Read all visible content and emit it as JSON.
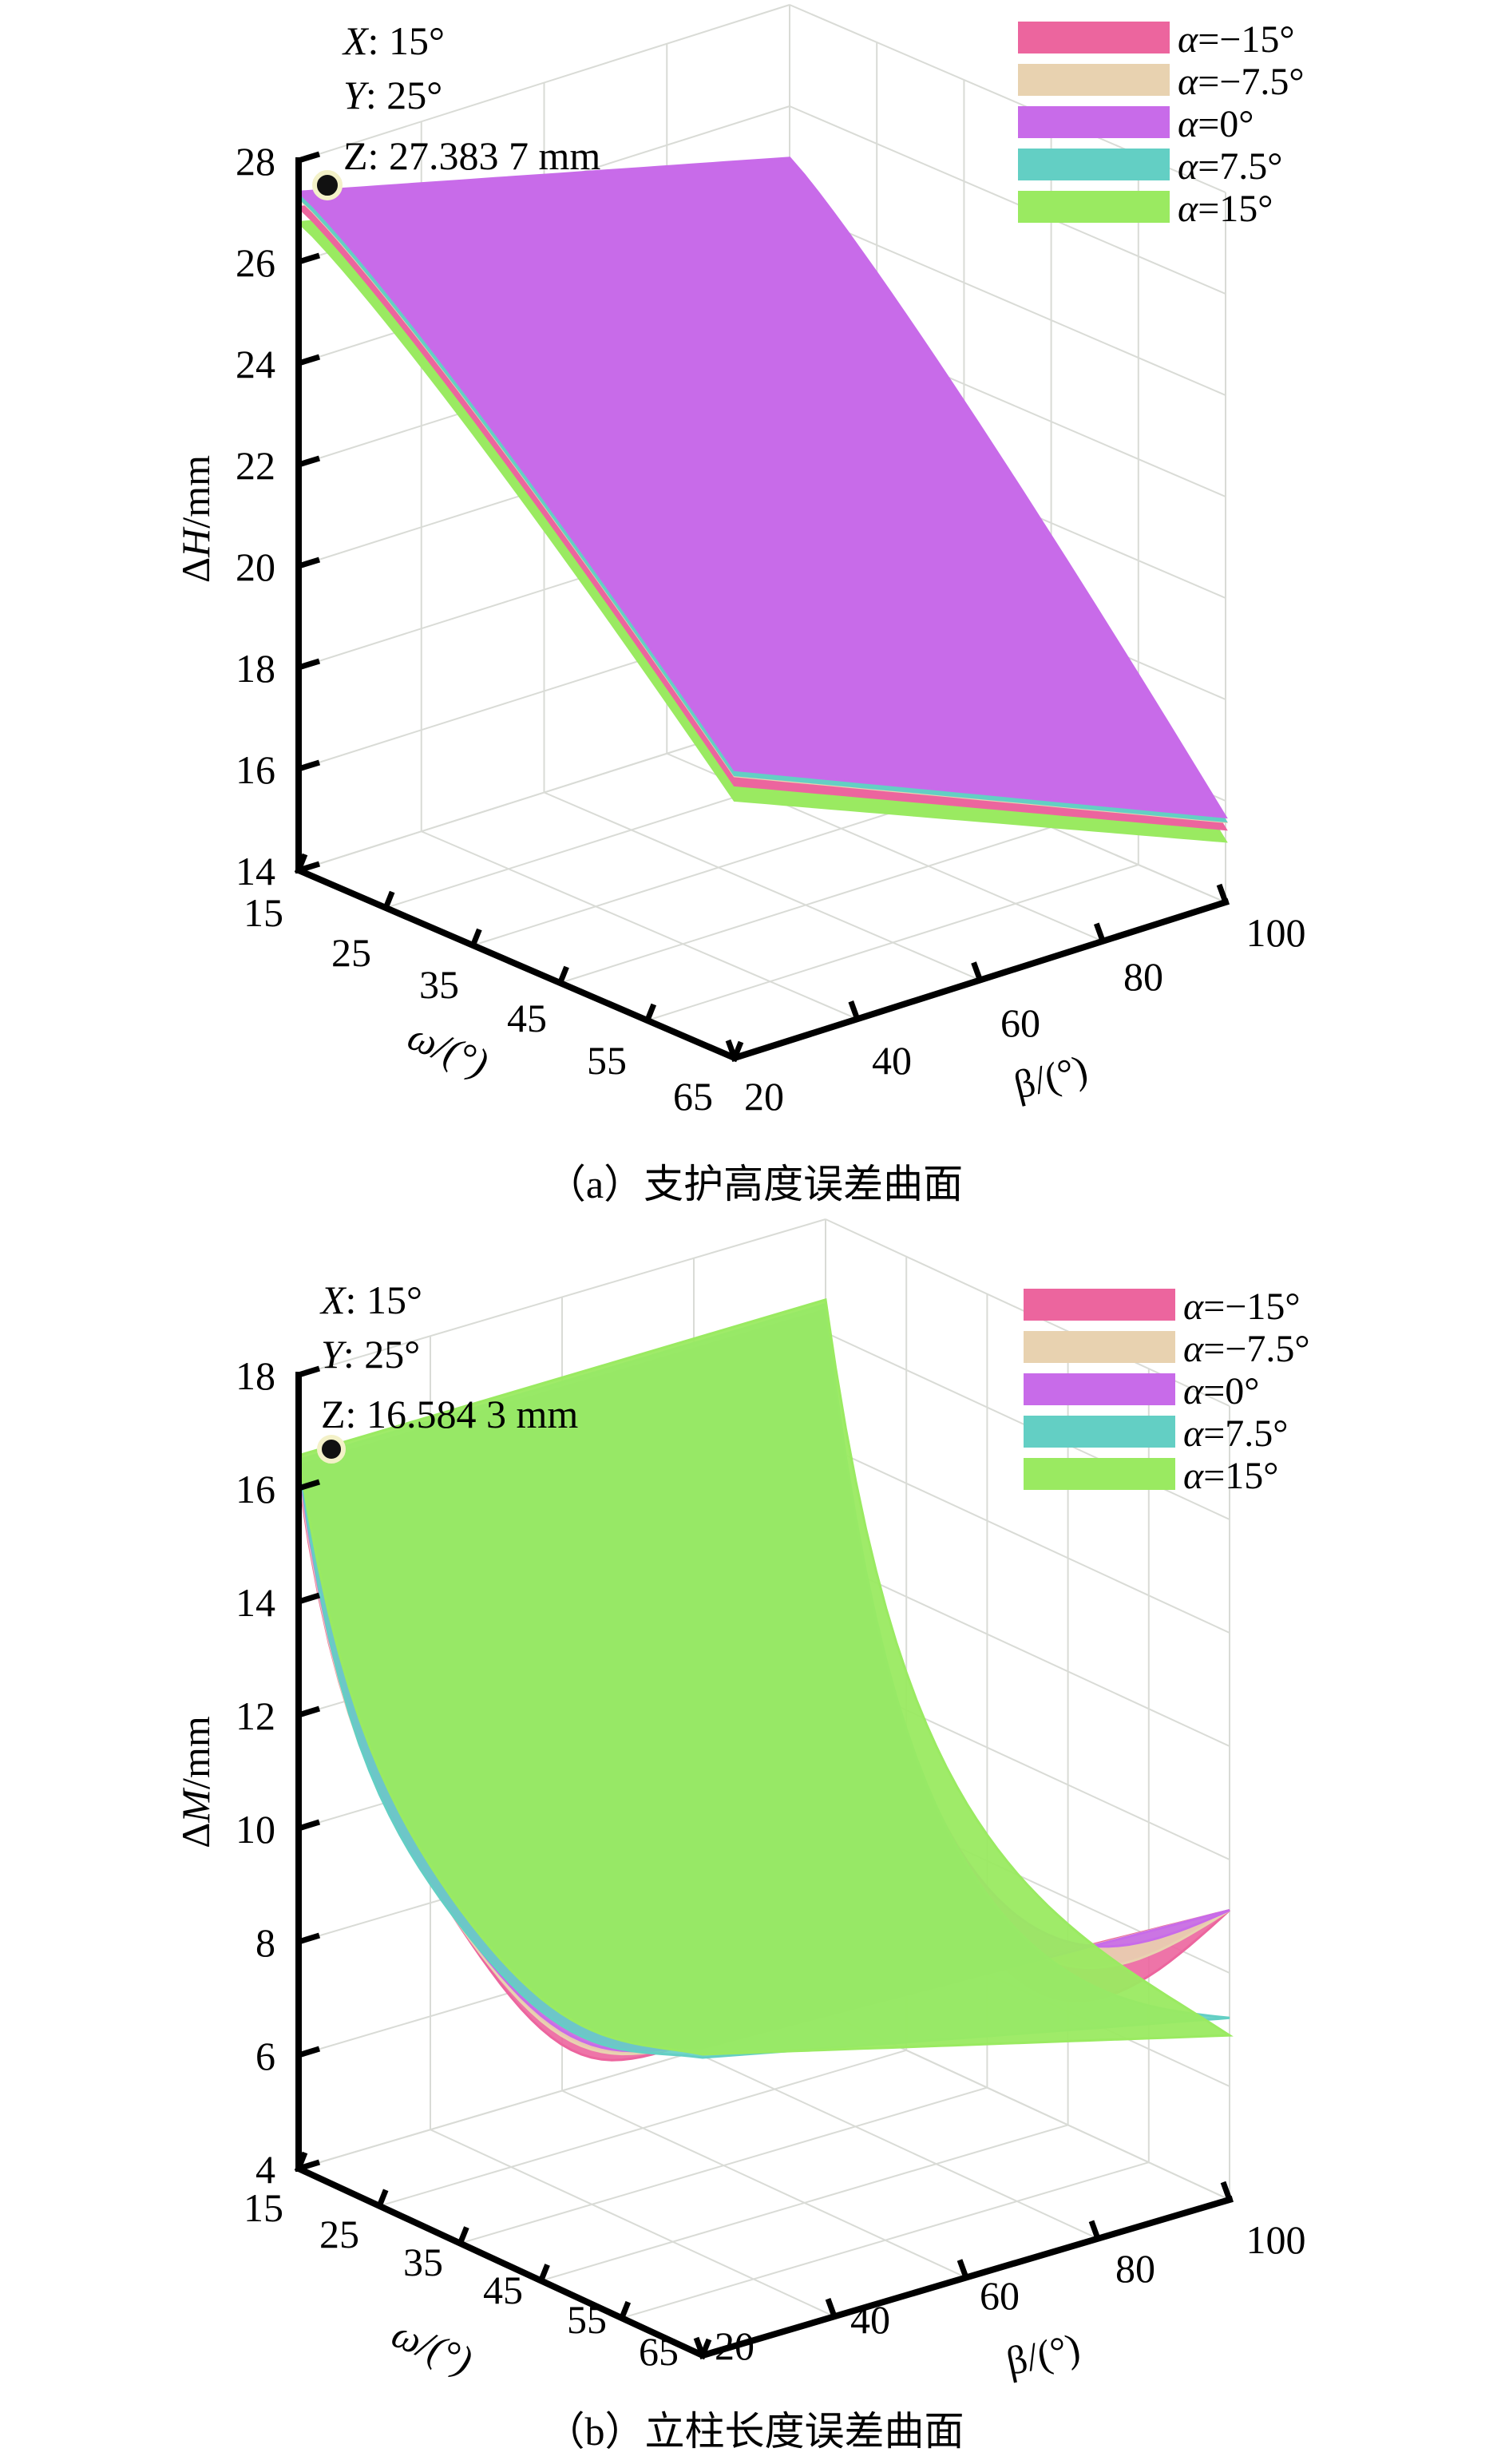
{
  "colors": {
    "alpha_m15": "#ec659e",
    "alpha_m7_5": "#e8d2b0",
    "alpha_0": "#c86be9",
    "alpha_7_5": "#63cfc4",
    "alpha_15": "#9aea61"
  },
  "chart_data": [
    {
      "type": "surface3d",
      "caption": "（a）支护高度误差曲面",
      "xlabel": "ω/(°)",
      "ylabel": "β/(°)",
      "zlabel_prefix": "Δ",
      "zlabel_var": "H",
      "zlabel_unit": "/mm",
      "x_ticks": [
        "15",
        "25",
        "35",
        "45",
        "55",
        "65"
      ],
      "y_ticks": [
        "20",
        "40",
        "60",
        "80",
        "100"
      ],
      "z_ticks": [
        "14",
        "16",
        "18",
        "20",
        "22",
        "24",
        "26",
        "28"
      ],
      "xlim": [
        15,
        65
      ],
      "ylim": [
        20,
        100
      ],
      "zlim": [
        14,
        28
      ],
      "legend": {
        "placement": "top-right",
        "entries": [
          "α=−15°",
          "α=−7.5°",
          "α=0°",
          "α=7.5°",
          "α=15°"
        ]
      },
      "datatip": {
        "x_label": "X",
        "x_value": ": 15°",
        "y_label": "Y",
        "y_value": ": 25°",
        "z_label": "Z",
        "z_value": ": 27.383 7 mm",
        "point": {
          "x": 15,
          "y": 25,
          "z": 27.3837
        }
      },
      "series": [
        {
          "name": "α=−15°",
          "corner_z": {
            "w15_b20": 27.1,
            "w65_b20": 19.4,
            "w65_b100": 15.4
          }
        },
        {
          "name": "α=−7.5°",
          "corner_z": {
            "w15_b20": 27.3,
            "w65_b20": 19.6,
            "w65_b100": 15.6
          }
        },
        {
          "name": "α=0°",
          "corner_z": {
            "w15_b20": 27.38,
            "w65_b20": 19.7,
            "w65_b100": 15.7
          }
        },
        {
          "name": "α=7.5°",
          "corner_z": {
            "w15_b20": 27.3,
            "w65_b20": 19.6,
            "w65_b100": 15.6
          }
        },
        {
          "name": "α=15°",
          "corner_z": {
            "w15_b20": 26.8,
            "w65_b20": 19.1,
            "w65_b100": 15.1
          }
        }
      ]
    },
    {
      "type": "surface3d",
      "caption": "（b）立柱长度误差曲面",
      "xlabel": "ω/(°)",
      "ylabel": "β/(°)",
      "zlabel_prefix": "Δ",
      "zlabel_var": "M",
      "zlabel_unit": "/mm",
      "x_ticks": [
        "15",
        "25",
        "35",
        "45",
        "55",
        "65"
      ],
      "y_ticks": [
        "20",
        "40",
        "60",
        "80",
        "100"
      ],
      "z_ticks": [
        "4",
        "6",
        "8",
        "10",
        "12",
        "14",
        "16",
        "18"
      ],
      "xlim": [
        15,
        65
      ],
      "ylim": [
        20,
        100
      ],
      "zlim": [
        4,
        18
      ],
      "legend": {
        "placement": "top-right",
        "entries": [
          "α=−15°",
          "α=−7.5°",
          "α=0°",
          "α=7.5°",
          "α=15°"
        ]
      },
      "datatip": {
        "x_label": "X",
        "x_value": ": 15°",
        "y_label": "Y",
        "y_value": ": 25°",
        "z_label": "Z",
        "z_value": ": 16.584 3 mm",
        "point": {
          "x": 15,
          "y": 25,
          "z": 16.5843
        }
      },
      "series": [
        {
          "name": "α=−15°",
          "min_z": 5.5
        },
        {
          "name": "α=−7.5°",
          "min_z": 6.0
        },
        {
          "name": "α=0°",
          "min_z": 6.5
        },
        {
          "name": "α=7.5°",
          "min_z": 5.2
        },
        {
          "name": "α=15°",
          "min_z": 5.2
        }
      ]
    }
  ]
}
